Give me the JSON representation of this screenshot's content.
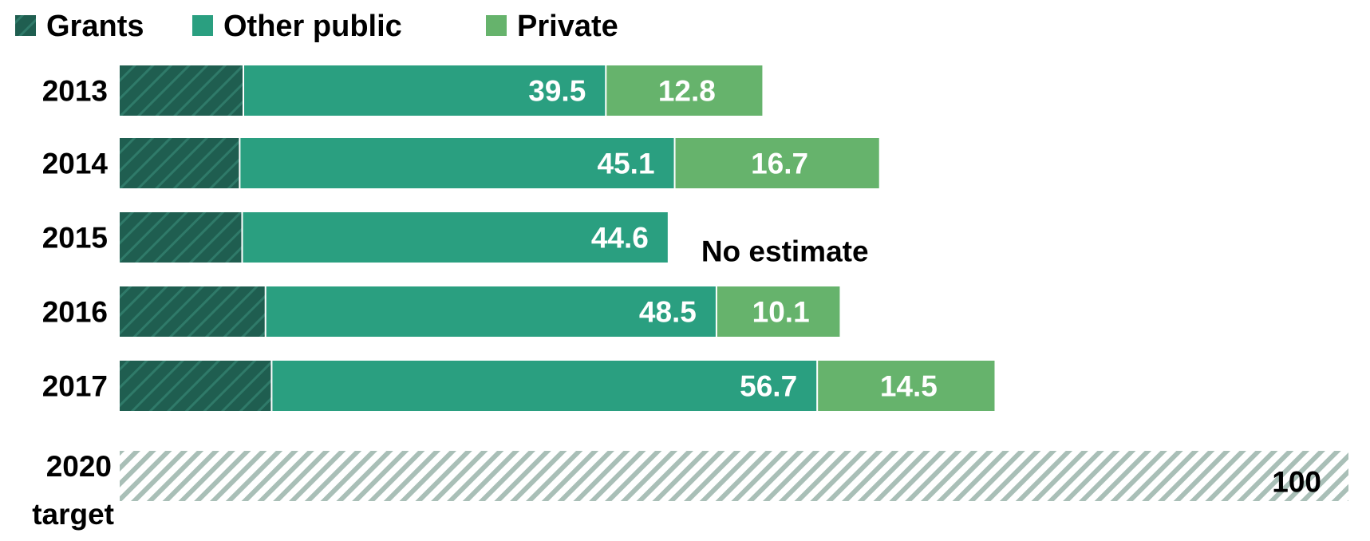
{
  "chart_data": {
    "type": "bar",
    "orientation": "horizontal",
    "stacked": true,
    "title": "",
    "xlabel": "",
    "ylabel": "",
    "xlim": [
      0,
      100
    ],
    "grid": false,
    "legend_position": "top-left",
    "legend": [
      "Grants",
      "Other public",
      "Private"
    ],
    "colors": {
      "grants": "#1f5e50",
      "grants_hatch": "#2f7a69",
      "other_public": "#2a9f80",
      "private": "#66b36c",
      "target_hatch": "#a9bfb7",
      "target_bg": "#ffffff"
    },
    "categories": [
      "2013",
      "2014",
      "2015",
      "2016",
      "2017"
    ],
    "rows": [
      {
        "year": "2013",
        "grants": 10.0,
        "public_total": 39.5,
        "public_label": "39.5",
        "private": 12.8,
        "private_label": "12.8"
      },
      {
        "year": "2014",
        "grants": 9.7,
        "public_total": 45.1,
        "public_label": "45.1",
        "private": 16.7,
        "private_label": "16.7"
      },
      {
        "year": "2015",
        "grants": 9.9,
        "public_total": 44.6,
        "public_label": "44.6",
        "private": null,
        "private_label": "No estimate"
      },
      {
        "year": "2016",
        "grants": 11.8,
        "public_total": 48.5,
        "public_label": "48.5",
        "private": 10.1,
        "private_label": "10.1"
      },
      {
        "year": "2017",
        "grants": 12.3,
        "public_total": 56.7,
        "public_label": "56.7",
        "private": 14.5,
        "private_label": "14.5"
      }
    ],
    "target": {
      "label_line1": "2020",
      "label_line2": "target",
      "value": 100,
      "value_label": "100"
    }
  }
}
